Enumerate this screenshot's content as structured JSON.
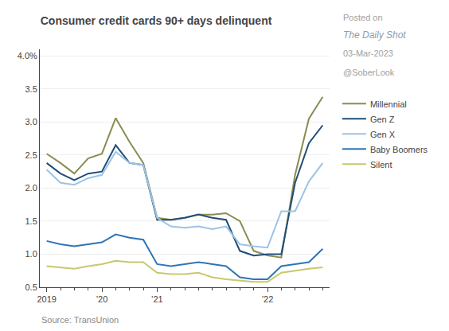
{
  "chart_data": {
    "type": "line",
    "title": "Consumer credit cards 90+ days delinquent",
    "annotations": [
      "Source: TransUnion",
      "Posted on",
      "The Daily Shot",
      "03-Mar-2023",
      "@SoberLook"
    ],
    "categories": [
      "2019",
      null,
      null,
      null,
      "’20",
      null,
      null,
      null,
      "’21",
      null,
      null,
      null,
      null,
      null,
      null,
      null,
      "’22",
      null,
      null,
      null,
      null
    ],
    "series": [
      {
        "name": "Millennial",
        "color": "#8b8c50",
        "values": [
          2.52,
          2.38,
          2.22,
          2.45,
          2.52,
          3.06,
          2.7,
          2.38,
          1.55,
          1.52,
          1.55,
          1.6,
          1.6,
          1.62,
          1.5,
          1.05,
          0.98,
          0.95,
          2.2,
          3.05,
          3.38
        ]
      },
      {
        "name": "Gen Z",
        "color": "#1f4e79",
        "values": [
          2.38,
          2.22,
          2.12,
          2.22,
          2.25,
          2.65,
          2.38,
          2.35,
          1.52,
          1.52,
          1.55,
          1.6,
          1.55,
          1.52,
          1.05,
          0.98,
          1.0,
          1.0,
          2.08,
          2.68,
          2.95
        ]
      },
      {
        "name": "Gen X",
        "color": "#9dc3e6",
        "values": [
          2.28,
          2.08,
          2.05,
          2.15,
          2.2,
          2.55,
          2.38,
          2.35,
          1.55,
          1.42,
          1.4,
          1.42,
          1.38,
          1.42,
          1.15,
          1.12,
          1.1,
          1.65,
          1.65,
          2.1,
          2.38
        ]
      },
      {
        "name": "Baby Boomers",
        "color": "#2e75b6",
        "values": [
          1.2,
          1.15,
          1.12,
          1.15,
          1.18,
          1.3,
          1.25,
          1.22,
          0.85,
          0.82,
          0.85,
          0.88,
          0.85,
          0.82,
          0.65,
          0.62,
          0.62,
          0.82,
          0.85,
          0.88,
          1.08
        ]
      },
      {
        "name": "Silent",
        "color": "#c8c86e",
        "values": [
          0.82,
          0.8,
          0.78,
          0.82,
          0.85,
          0.9,
          0.88,
          0.88,
          0.72,
          0.7,
          0.7,
          0.72,
          0.65,
          0.62,
          0.6,
          0.58,
          0.58,
          0.72,
          0.75,
          0.78,
          0.8
        ]
      }
    ],
    "ylim": [
      0.5,
      4.1
    ],
    "yticks": [
      0.5,
      {
        "value": 1.0,
        "label": "1.0"
      },
      {
        "value": 1.5,
        "label": "1.5"
      },
      {
        "value": 2.0,
        "label": "2.0"
      },
      {
        "value": 2.5,
        "label": "2.5"
      },
      {
        "value": 3.0,
        "label": "3.0"
      },
      {
        "value": 3.5,
        "label": "3.5"
      },
      {
        "value": 4.0,
        "label": "4.0%"
      }
    ],
    "grid": true,
    "legend": "right"
  }
}
